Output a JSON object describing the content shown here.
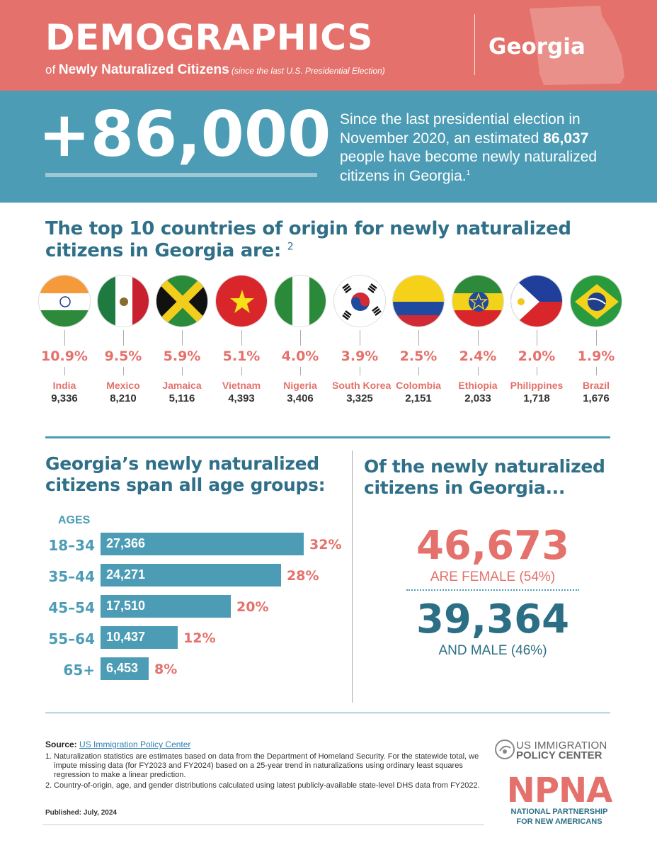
{
  "header": {
    "title": "DEMOGRAPHICS",
    "subtitle_prefix": "of ",
    "subtitle_bold": "Newly Naturalized Citizens",
    "subtitle_note": " (since the last U.S. Presidential Election)",
    "state": "Georgia"
  },
  "hero": {
    "number": "+86,000",
    "text_1": "Since the last presidential election in November 2020, an estimated ",
    "text_bold": "86,037",
    "text_2": " people have become newly naturalized citizens in Georgia.",
    "footnote": "1"
  },
  "countries_section": {
    "title": "The top 10 countries of origin for newly naturalized citizens in Georgia are:",
    "footnote": "2",
    "countries": [
      {
        "name": "India",
        "pct": "10.9%",
        "count": "9,336",
        "flag_icon": "india-flag-icon"
      },
      {
        "name": "Mexico",
        "pct": "9.5%",
        "count": "8,210",
        "flag_icon": "mexico-flag-icon"
      },
      {
        "name": "Jamaica",
        "pct": "5.9%",
        "count": "5,116",
        "flag_icon": "jamaica-flag-icon"
      },
      {
        "name": "Vietnam",
        "pct": "5.1%",
        "count": "4,393",
        "flag_icon": "vietnam-flag-icon"
      },
      {
        "name": "Nigeria",
        "pct": "4.0%",
        "count": "3,406",
        "flag_icon": "nigeria-flag-icon"
      },
      {
        "name": "South Korea",
        "pct": "3.9%",
        "count": "3,325",
        "flag_icon": "south-korea-flag-icon"
      },
      {
        "name": "Colombia",
        "pct": "2.5%",
        "count": "2,151",
        "flag_icon": "colombia-flag-icon"
      },
      {
        "name": "Ethiopia",
        "pct": "2.4%",
        "count": "2,033",
        "flag_icon": "ethiopia-flag-icon"
      },
      {
        "name": "Philippines",
        "pct": "2.0%",
        "count": "1,718",
        "flag_icon": "philippines-flag-icon"
      },
      {
        "name": "Brazil",
        "pct": "1.9%",
        "count": "1,676",
        "flag_icon": "brazil-flag-icon"
      }
    ]
  },
  "ages_section": {
    "title": "Georgia’s newly naturalized citizens span all age groups:",
    "heading": "AGES",
    "groups": [
      {
        "label": "18–34",
        "count": "27,366",
        "pct": "32%",
        "value": 27366
      },
      {
        "label": "35–44",
        "count": "24,271",
        "pct": "28%",
        "value": 24271
      },
      {
        "label": "45–54",
        "count": "17,510",
        "pct": "20%",
        "value": 17510
      },
      {
        "label": "55–64",
        "count": "10,437",
        "pct": "12%",
        "value": 10437
      },
      {
        "label": "65+",
        "count": "6,453",
        "pct": "8%",
        "value": 6453
      }
    ]
  },
  "gender_section": {
    "title": "Of the newly naturalized citizens in Georgia...",
    "female_number": "46,673",
    "female_label": "ARE FEMALE (54%)",
    "male_number": "39,364",
    "male_label": "AND MALE (46%)"
  },
  "footer": {
    "source_label": "Source:",
    "source_link": "US Immigration Policy Center",
    "note_1_num": "1.",
    "note_1": "Naturalization statistics are estimates based on data from the Department of Homeland Security. For the statewide total, we impute missing data (for FY2023 and FY2024) based on a 25-year trend in naturalizations using ordinary least squares regression to make a linear prediction.",
    "note_2_num": "2.",
    "note_2": "Country-of-origin, age, and gender distributions calculated using latest publicly-available state-level DHS data from FY2022.",
    "published": "Published: July, 2024"
  },
  "logos": {
    "usipc_line1": "US IMMIGRATION",
    "usipc_line2": "POLICY CENTER",
    "npna": "NPNA",
    "npna_line1": "NATIONAL PARTNERSHIP",
    "npna_line2": "FOR NEW AMERICANS"
  },
  "colors": {
    "coral": "#e4716b",
    "teal": "#4c9cb5",
    "dark_teal": "#2c6f85"
  }
}
